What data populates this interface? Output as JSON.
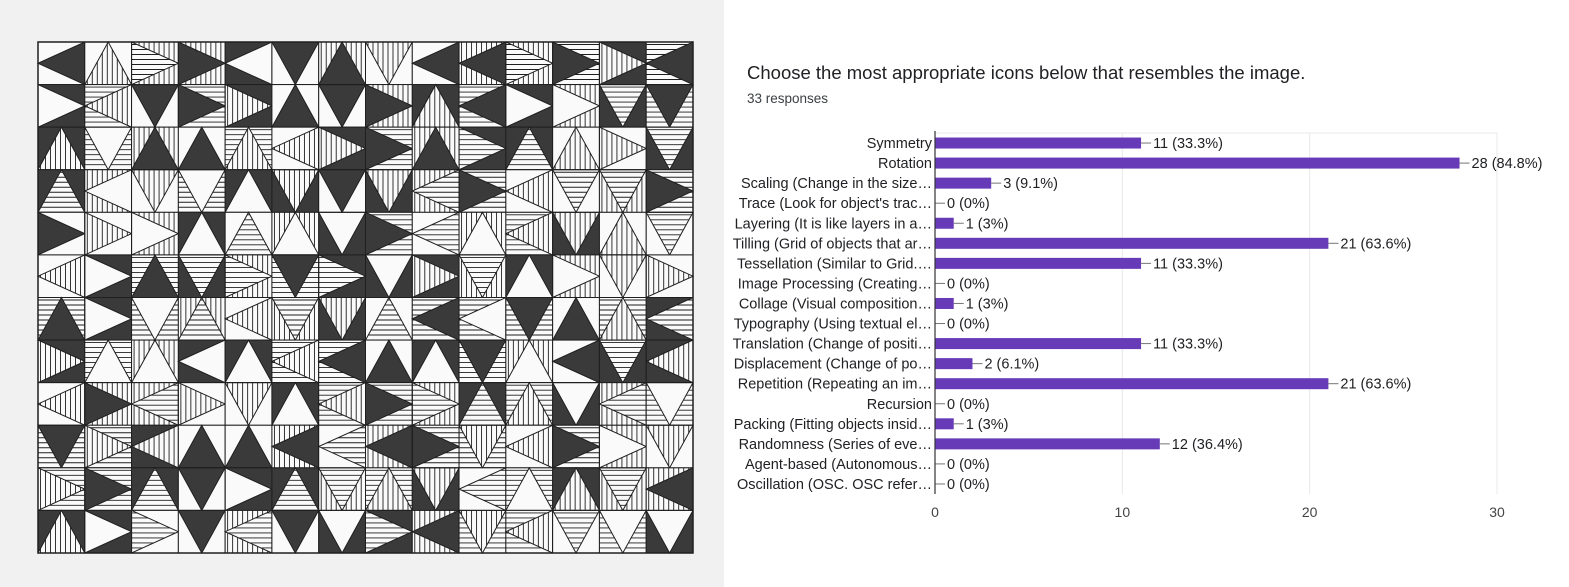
{
  "artwork": {
    "palette": {
      "dark": "#3a3a3a",
      "light": "#fafafa",
      "line": "#1f1f1f",
      "bg": "#f1f1f1"
    }
  },
  "chart": {
    "title": "Choose the most appropriate icons below that resembles the image.",
    "subtitle": "33 responses",
    "bar_color": "#673ab7"
  },
  "chart_data": {
    "type": "bar",
    "orientation": "horizontal",
    "title": "Choose the most appropriate icons below that resembles the image.",
    "categories": [
      "Symmetry",
      "Rotation",
      "Scaling (Change in the size…",
      "Trace (Look for object's trac…",
      "Layering (It is like layers in a…",
      "Tilling (Grid of objects that ar…",
      "Tessellation (Similar to Grid.…",
      "Image Processing (Creating…",
      "Collage (Visual composition…",
      "Typography (Using textual el…",
      "Translation (Change of positi…",
      "Displacement (Change of po…",
      "Repetition (Repeating an im…",
      "Recursion",
      "Packing (Fitting objects insid…",
      "Randomness (Series of eve…",
      "Agent-based (Autonomous…",
      "Oscillation (OSC. OSC refer…"
    ],
    "values": [
      11,
      28,
      3,
      0,
      1,
      21,
      11,
      0,
      1,
      0,
      11,
      2,
      21,
      0,
      1,
      12,
      0,
      0
    ],
    "value_labels": [
      "11 (33.3%)",
      "28 (84.8%)",
      "3 (9.1%)",
      "0 (0%)",
      "1 (3%)",
      "21 (63.6%)",
      "11 (33.3%)",
      "0 (0%)",
      "1 (3%)",
      "0 (0%)",
      "11 (33.3%)",
      "2 (6.1%)",
      "21 (63.6%)",
      "0 (0%)",
      "1 (3%)",
      "12 (36.4%)",
      "0 (0%)",
      "0 (0%)"
    ],
    "xlim": [
      0,
      30
    ],
    "xticks": [
      0,
      10,
      20,
      30
    ],
    "grid": true,
    "xlabel": "",
    "ylabel": ""
  }
}
